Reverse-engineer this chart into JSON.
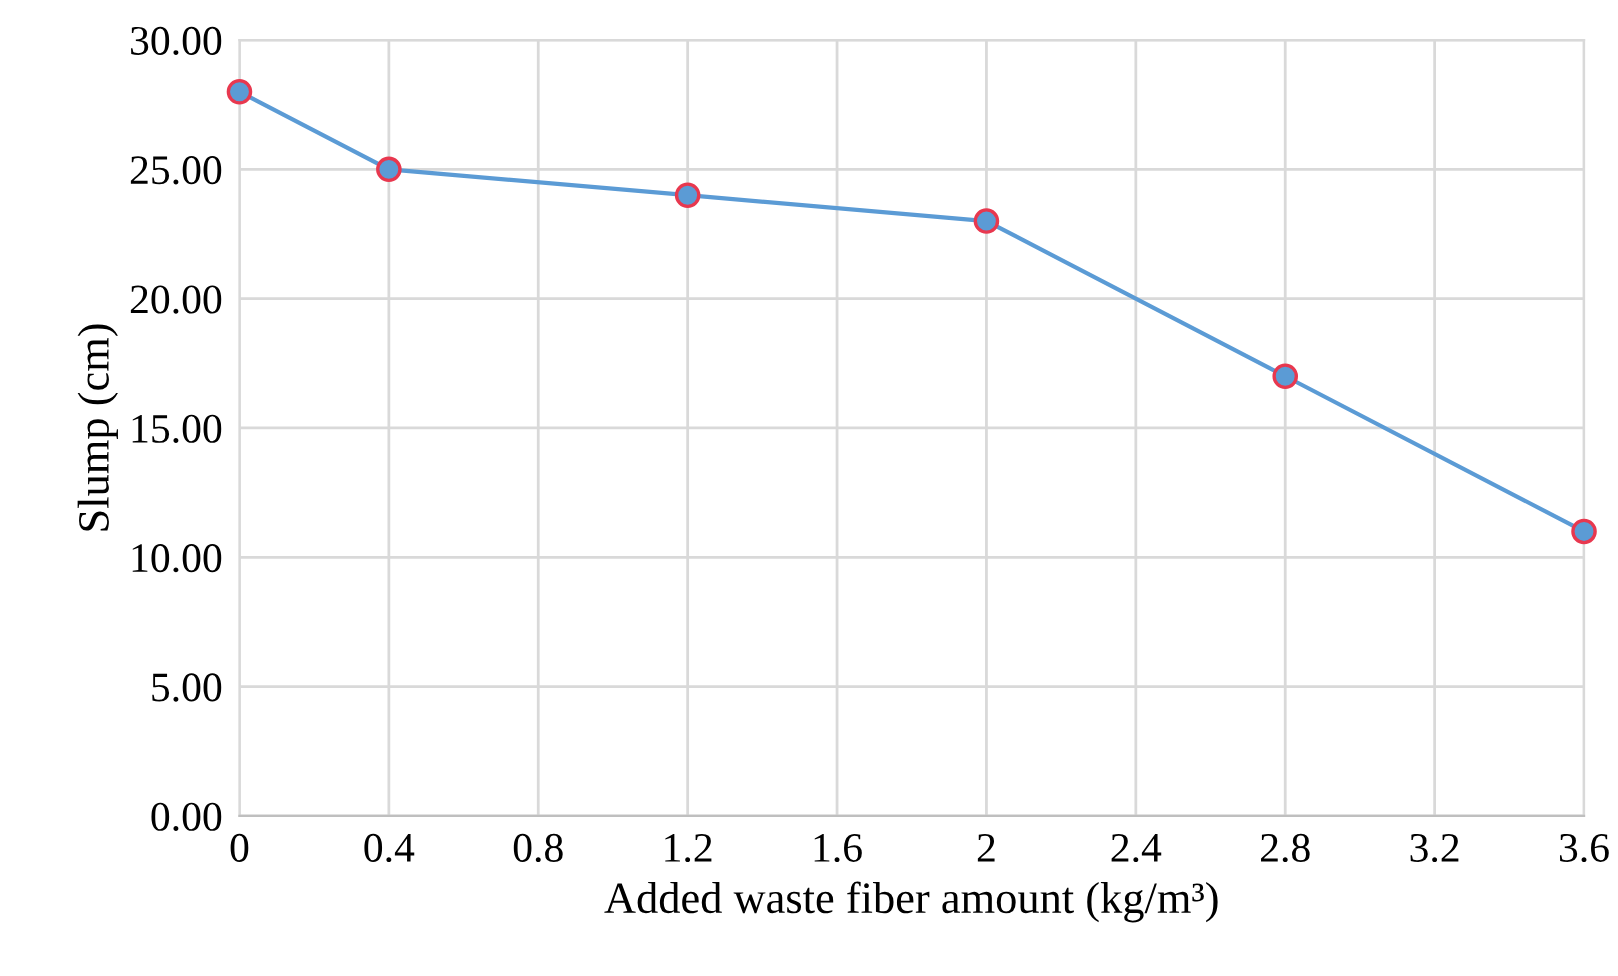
{
  "chart_data": {
    "type": "line",
    "xlabel": "Added waste fiber amount (kg/m³)",
    "ylabel": "Slump (cm)",
    "x": [
      0,
      0.4,
      1.2,
      2,
      2.8,
      3.6
    ],
    "series": [
      {
        "color": "#5b9bd5",
        "values": [
          28,
          25,
          24,
          23,
          17,
          11
        ]
      }
    ],
    "xlim": [
      0,
      3.6
    ],
    "xticks": [
      0,
      0.4,
      0.8,
      1.2,
      1.6,
      2,
      2.4,
      2.8,
      3.2,
      3.6
    ],
    "ylim": [
      0,
      30
    ],
    "yticks": [
      {
        "value": 0,
        "label": "0.00"
      },
      {
        "value": 5,
        "label": "5.00"
      },
      {
        "value": 10,
        "label": "10.00"
      },
      {
        "value": 15,
        "label": "15.00"
      },
      {
        "value": 20,
        "label": "20.00"
      },
      {
        "value": 25,
        "label": "25.00"
      },
      {
        "value": 30,
        "label": "30.00"
      }
    ],
    "grid": true,
    "marker": "circle",
    "line_style": "solid"
  }
}
